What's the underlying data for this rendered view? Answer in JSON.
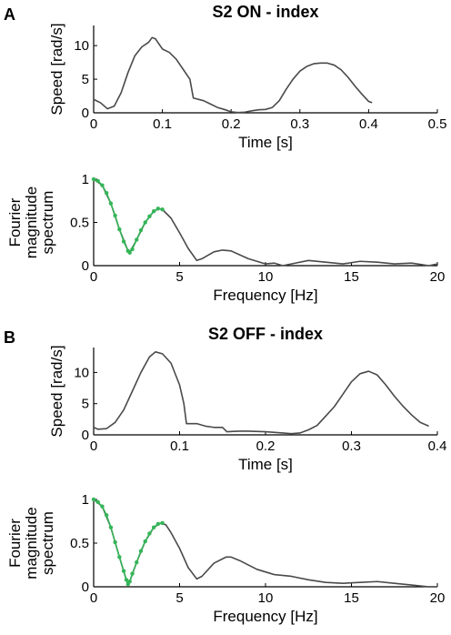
{
  "colors": {
    "line": "#4a4a4a",
    "fit": "#35b558",
    "axis": "#000000"
  },
  "panels": [
    {
      "letter": "A",
      "title": "S2 ON - index"
    },
    {
      "letter": "B",
      "title": "S2 OFF - index"
    }
  ],
  "chart_data": [
    {
      "type": "line",
      "panel": "A",
      "title": "S2 ON - index",
      "xlabel": "Time [s]",
      "ylabel": "Speed [rad/s]",
      "xlim": [
        0,
        0.5
      ],
      "ylim": [
        0,
        13
      ],
      "xticks": [
        0,
        0.1,
        0.2,
        0.3,
        0.4,
        0.5
      ],
      "xtick_labels": [
        "0",
        "0.1",
        "0.2",
        "0.3",
        "0.4",
        "0.5"
      ],
      "yticks": [
        0,
        5,
        10
      ],
      "ytick_labels": [
        "0",
        "5",
        "10"
      ],
      "grid": false,
      "series": [
        {
          "values": [
            [
              0,
              2.0
            ],
            [
              0.01,
              1.5
            ],
            [
              0.02,
              0.6
            ],
            [
              0.03,
              1.0
            ],
            [
              0.04,
              3.0
            ],
            [
              0.05,
              6.0
            ],
            [
              0.06,
              8.5
            ],
            [
              0.07,
              9.8
            ],
            [
              0.08,
              10.5
            ],
            [
              0.085,
              11.2
            ],
            [
              0.09,
              11.0
            ],
            [
              0.1,
              9.5
            ],
            [
              0.11,
              9.0
            ],
            [
              0.12,
              8.0
            ],
            [
              0.13,
              6.5
            ],
            [
              0.14,
              5.0
            ],
            [
              0.145,
              2.2
            ],
            [
              0.16,
              1.8
            ],
            [
              0.17,
              1.3
            ],
            [
              0.18,
              0.8
            ],
            [
              0.19,
              0.5
            ],
            [
              0.2,
              0.15
            ],
            [
              0.21,
              0.05
            ],
            [
              0.22,
              0.1
            ],
            [
              0.23,
              0.3
            ],
            [
              0.24,
              0.45
            ],
            [
              0.25,
              0.5
            ],
            [
              0.26,
              0.8
            ],
            [
              0.27,
              1.8
            ],
            [
              0.28,
              3.5
            ],
            [
              0.29,
              5.0
            ],
            [
              0.3,
              6.2
            ],
            [
              0.31,
              6.9
            ],
            [
              0.32,
              7.3
            ],
            [
              0.33,
              7.4
            ],
            [
              0.34,
              7.4
            ],
            [
              0.35,
              7.1
            ],
            [
              0.36,
              6.4
            ],
            [
              0.37,
              5.3
            ],
            [
              0.38,
              4.0
            ],
            [
              0.39,
              2.8
            ],
            [
              0.4,
              1.7
            ],
            [
              0.405,
              1.5
            ]
          ]
        }
      ]
    },
    {
      "type": "line",
      "panel": "A",
      "xlabel": "Frequency [Hz]",
      "ylabel": "Fourier magnitude spectrum",
      "ylabel_lines": [
        "Fourier",
        "magnitude",
        "spectrum"
      ],
      "xlim": [
        0,
        20
      ],
      "ylim": [
        0,
        1
      ],
      "xticks": [
        0,
        5,
        10,
        15,
        20
      ],
      "xtick_labels": [
        "0",
        "5",
        "10",
        "15",
        "20"
      ],
      "yticks": [
        0,
        0.5,
        1
      ],
      "ytick_labels": [
        "0",
        "0.5",
        "1"
      ],
      "grid": false,
      "series": [
        {
          "values": [
            [
              0,
              1.0
            ],
            [
              0.5,
              0.93
            ],
            [
              1.0,
              0.72
            ],
            [
              1.5,
              0.42
            ],
            [
              2.0,
              0.17
            ],
            [
              2.1,
              0.15
            ],
            [
              2.5,
              0.3
            ],
            [
              3.0,
              0.5
            ],
            [
              3.5,
              0.63
            ],
            [
              3.8,
              0.66
            ],
            [
              4.0,
              0.65
            ],
            [
              4.5,
              0.55
            ],
            [
              5.0,
              0.38
            ],
            [
              5.5,
              0.2
            ],
            [
              6.0,
              0.06
            ],
            [
              6.3,
              0.08
            ],
            [
              7.0,
              0.16
            ],
            [
              7.5,
              0.18
            ],
            [
              8.0,
              0.17
            ],
            [
              9.0,
              0.08
            ],
            [
              10.0,
              0.02
            ],
            [
              10.5,
              0.03
            ],
            [
              11.0,
              0.0
            ],
            [
              11.5,
              0.02
            ],
            [
              12.5,
              0.06
            ],
            [
              13.5,
              0.04
            ],
            [
              14.5,
              0.02
            ],
            [
              15.5,
              0.05
            ],
            [
              16.5,
              0.04
            ],
            [
              17.5,
              0.02
            ],
            [
              18.5,
              0.03
            ],
            [
              19.5,
              0.0
            ],
            [
              20.0,
              0.02
            ]
          ]
        },
        {
          "values": [
            [
              0,
              1.0
            ],
            [
              0.25,
              0.98
            ],
            [
              0.5,
              0.93
            ],
            [
              0.75,
              0.84
            ],
            [
              1.0,
              0.72
            ],
            [
              1.25,
              0.58
            ],
            [
              1.5,
              0.42
            ],
            [
              1.75,
              0.28
            ],
            [
              2.0,
              0.17
            ],
            [
              2.1,
              0.15
            ],
            [
              2.25,
              0.19
            ],
            [
              2.5,
              0.3
            ],
            [
              2.75,
              0.41
            ],
            [
              3.0,
              0.5
            ],
            [
              3.25,
              0.57
            ],
            [
              3.5,
              0.63
            ],
            [
              3.75,
              0.66
            ],
            [
              4.0,
              0.65
            ]
          ]
        }
      ]
    },
    {
      "type": "line",
      "panel": "B",
      "title": "S2 OFF - index",
      "xlabel": "Time [s]",
      "ylabel": "Speed [rad/s]",
      "xlim": [
        0,
        0.4
      ],
      "ylim": [
        0,
        14
      ],
      "xticks": [
        0,
        0.1,
        0.2,
        0.3,
        0.4
      ],
      "xtick_labels": [
        "0",
        "0.1",
        "0.2",
        "0.3",
        "0.4"
      ],
      "yticks": [
        0,
        5,
        10
      ],
      "ytick_labels": [
        "0",
        "5",
        "10"
      ],
      "grid": false,
      "series": [
        {
          "values": [
            [
              0,
              1.2
            ],
            [
              0.005,
              0.9
            ],
            [
              0.015,
              1.0
            ],
            [
              0.025,
              2.0
            ],
            [
              0.035,
              4.0
            ],
            [
              0.045,
              7.0
            ],
            [
              0.055,
              10.0
            ],
            [
              0.065,
              12.5
            ],
            [
              0.072,
              13.3
            ],
            [
              0.08,
              13.0
            ],
            [
              0.09,
              11.5
            ],
            [
              0.1,
              8.0
            ],
            [
              0.105,
              5.0
            ],
            [
              0.108,
              1.8
            ],
            [
              0.12,
              1.8
            ],
            [
              0.13,
              1.4
            ],
            [
              0.14,
              1.2
            ],
            [
              0.15,
              1.2
            ],
            [
              0.155,
              0.5
            ],
            [
              0.17,
              0.6
            ],
            [
              0.18,
              0.6
            ],
            [
              0.2,
              0.5
            ],
            [
              0.22,
              0.3
            ],
            [
              0.23,
              0.2
            ],
            [
              0.24,
              0.3
            ],
            [
              0.25,
              0.8
            ],
            [
              0.26,
              1.5
            ],
            [
              0.27,
              3.0
            ],
            [
              0.28,
              4.5
            ],
            [
              0.29,
              6.5
            ],
            [
              0.3,
              8.5
            ],
            [
              0.31,
              9.8
            ],
            [
              0.32,
              10.2
            ],
            [
              0.33,
              9.6
            ],
            [
              0.34,
              8.0
            ],
            [
              0.35,
              6.2
            ],
            [
              0.36,
              4.6
            ],
            [
              0.37,
              3.2
            ],
            [
              0.38,
              2.0
            ],
            [
              0.39,
              1.4
            ]
          ]
        }
      ]
    },
    {
      "type": "line",
      "panel": "B",
      "xlabel": "Frequency [Hz]",
      "ylabel": "Fourier magnitude spectrum",
      "ylabel_lines": [
        "Fourier",
        "magnitude",
        "spectrum"
      ],
      "xlim": [
        0,
        20
      ],
      "ylim": [
        0,
        1
      ],
      "xticks": [
        0,
        5,
        10,
        15,
        20
      ],
      "xtick_labels": [
        "0",
        "5",
        "10",
        "15",
        "20"
      ],
      "yticks": [
        0,
        0.5,
        1
      ],
      "ytick_labels": [
        "0",
        "0.5",
        "1"
      ],
      "grid": false,
      "series": [
        {
          "values": [
            [
              0,
              1.0
            ],
            [
              0.5,
              0.92
            ],
            [
              1.0,
              0.68
            ],
            [
              1.5,
              0.34
            ],
            [
              1.9,
              0.08
            ],
            [
              2.0,
              0.03
            ],
            [
              2.1,
              0.06
            ],
            [
              2.5,
              0.28
            ],
            [
              3.0,
              0.52
            ],
            [
              3.5,
              0.68
            ],
            [
              3.9,
              0.73
            ],
            [
              4.2,
              0.71
            ],
            [
              4.5,
              0.62
            ],
            [
              5.0,
              0.44
            ],
            [
              5.5,
              0.22
            ],
            [
              6.0,
              0.09
            ],
            [
              6.3,
              0.12
            ],
            [
              7.0,
              0.27
            ],
            [
              7.7,
              0.34
            ],
            [
              8.0,
              0.34
            ],
            [
              8.5,
              0.3
            ],
            [
              9.5,
              0.2
            ],
            [
              10.5,
              0.14
            ],
            [
              11.5,
              0.12
            ],
            [
              12.5,
              0.08
            ],
            [
              13.5,
              0.05
            ],
            [
              14.5,
              0.04
            ],
            [
              15.5,
              0.05
            ],
            [
              16.5,
              0.06
            ],
            [
              17.5,
              0.04
            ],
            [
              18.5,
              0.02
            ],
            [
              19.5,
              0.0
            ],
            [
              20.0,
              0.0
            ]
          ]
        },
        {
          "values": [
            [
              0,
              1.0
            ],
            [
              0.25,
              0.97
            ],
            [
              0.5,
              0.92
            ],
            [
              0.75,
              0.82
            ],
            [
              1.0,
              0.68
            ],
            [
              1.25,
              0.51
            ],
            [
              1.5,
              0.34
            ],
            [
              1.75,
              0.18
            ],
            [
              1.9,
              0.08
            ],
            [
              2.0,
              0.03
            ],
            [
              2.1,
              0.06
            ],
            [
              2.25,
              0.15
            ],
            [
              2.5,
              0.28
            ],
            [
              2.75,
              0.41
            ],
            [
              3.0,
              0.52
            ],
            [
              3.25,
              0.61
            ],
            [
              3.5,
              0.68
            ],
            [
              3.75,
              0.72
            ],
            [
              4.0,
              0.73
            ]
          ]
        }
      ]
    }
  ]
}
